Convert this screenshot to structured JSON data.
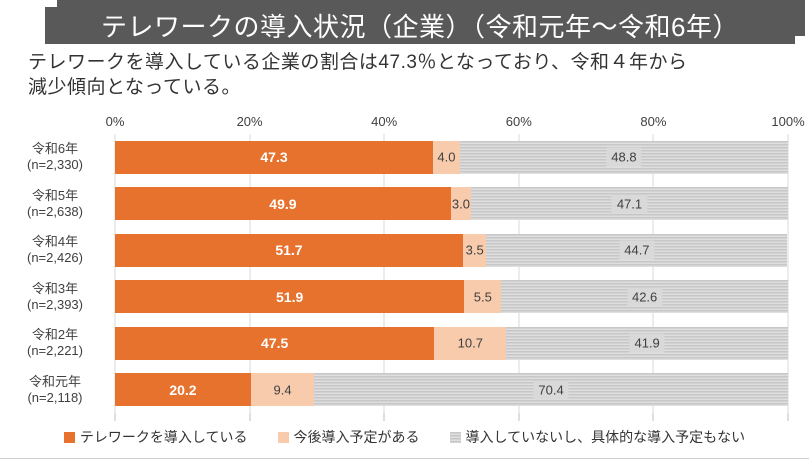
{
  "header": {
    "title": "テレワークの導入状況（企業）（令和元年～令和6年）",
    "description_line1": "テレワークを導入している企業の割合は47.3％となっており、令和４年から",
    "description_line2": "減少傾向となっている。"
  },
  "colors": {
    "title_bar_bg": "#595959",
    "title_text": "#ffffff",
    "series_adopted": "#e6722e",
    "series_planned": "#f8cbad",
    "series_none_stripe_dark": "#c7c7c7",
    "series_none_stripe_light": "#dedede",
    "value_box_bg": "#d9d9d9",
    "text": "#404040",
    "gridline": "#d9d9d9"
  },
  "chart_data": {
    "type": "bar",
    "orientation": "horizontal",
    "stacked": true,
    "grid": true,
    "legend_position": "bottom",
    "x_range": [
      0,
      100
    ],
    "x_ticks": [
      "0%",
      "20%",
      "40%",
      "60%",
      "80%",
      "100%"
    ],
    "categories": [
      {
        "year": "令和6年",
        "n": "(n=2,330)"
      },
      {
        "year": "令和5年",
        "n": "(n=2,638)"
      },
      {
        "year": "令和4年",
        "n": "(n=2,426)"
      },
      {
        "year": "令和3年",
        "n": "(n=2,393)"
      },
      {
        "year": "令和2年",
        "n": "(n=2,221)"
      },
      {
        "year": "令和元年",
        "n": "(n=2,118)"
      }
    ],
    "series": [
      {
        "key": "adopted",
        "name": "テレワークを導入している",
        "values": [
          "47.3",
          "49.9",
          "51.7",
          "51.9",
          "47.5",
          "20.2"
        ]
      },
      {
        "key": "planned",
        "name": "今後導入予定がある",
        "values": [
          "4.0",
          "3.0",
          "3.5",
          "5.5",
          "10.7",
          "9.4"
        ]
      },
      {
        "key": "none",
        "name": "導入していないし、具体的な導入予定もない",
        "values": [
          "48.8",
          "47.1",
          "44.7",
          "42.6",
          "41.9",
          "70.4"
        ]
      }
    ]
  },
  "legend": {
    "items": [
      {
        "label": "テレワークを導入している",
        "swatch": "orange"
      },
      {
        "label": "今後導入予定がある",
        "swatch": "peach"
      },
      {
        "label": "導入していないし、具体的な導入予定もない",
        "swatch": "gray-striped"
      }
    ]
  }
}
